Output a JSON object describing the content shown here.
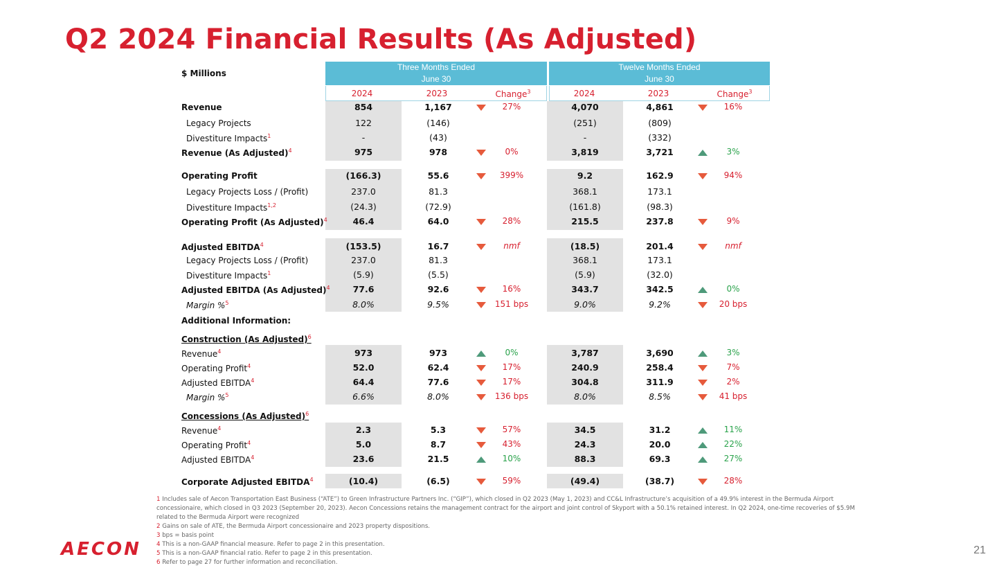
{
  "title": "Q2 2024 Financial Results (As Adjusted)",
  "units": "$ Millions",
  "header": {
    "three_months": [
      "Three Months Ended",
      "June 30"
    ],
    "twelve_months": [
      "Twelve Months Ended",
      "June 30"
    ],
    "q_2024": "2024",
    "q_2023": "2023",
    "q_change": "Change",
    "t_2024": "2024",
    "t_2023": "2023",
    "t_change": "Change",
    "change_sup": "3"
  },
  "rows": [
    {
      "label": "Revenue",
      "q24": "854",
      "q23": "1,167",
      "qdir": "down",
      "qchg": "27%",
      "qc": "red",
      "t24": "4,070",
      "t23": "4,861",
      "tdir": "down",
      "tchg": "16%",
      "tc": "red"
    },
    {
      "label": "Legacy Projects",
      "q24": "122",
      "q23": "(146)",
      "t24": "(251)",
      "t23": "(809)"
    },
    {
      "label": "Divestiture Impacts",
      "sup": "1",
      "q24": "-",
      "q23": "(43)",
      "t24": "-",
      "t23": "(332)"
    },
    {
      "label": "Revenue (As Adjusted)",
      "sup": "4",
      "q24": "975",
      "q23": "978",
      "qdir": "down",
      "qchg": "0%",
      "qc": "red",
      "t24": "3,819",
      "t23": "3,721",
      "tdir": "up",
      "tchg": "3%",
      "tc": "green"
    },
    {
      "label": "Operating Profit",
      "q24": "(166.3)",
      "q23": "55.6",
      "qdir": "down",
      "qchg": "399%",
      "qc": "red",
      "t24": "9.2",
      "t23": "162.9",
      "tdir": "down",
      "tchg": "94%",
      "tc": "red"
    },
    {
      "label": "Legacy Projects Loss / (Profit)",
      "q24": "237.0",
      "q23": "81.3",
      "t24": "368.1",
      "t23": "173.1"
    },
    {
      "label": "Divestiture Impacts",
      "sup": "1,2",
      "q24": "(24.3)",
      "q23": "(72.9)",
      "t24": "(161.8)",
      "t23": "(98.3)"
    },
    {
      "label": "Operating Profit (As Adjusted)",
      "sup": "4",
      "q24": "46.4",
      "q23": "64.0",
      "qdir": "down",
      "qchg": "28%",
      "qc": "red",
      "t24": "215.5",
      "t23": "237.8",
      "tdir": "down",
      "tchg": "9%",
      "tc": "red"
    },
    {
      "label": "Adjusted EBITDA",
      "sup": "4",
      "q24": "(153.5)",
      "q23": "16.7",
      "qdir": "down",
      "qchg": "nmf",
      "qc": "red",
      "t24": "(18.5)",
      "t23": "201.4",
      "tdir": "down",
      "tchg": "nmf",
      "tc": "red"
    },
    {
      "label": "Legacy Projects Loss / (Profit)",
      "q24": "237.0",
      "q23": "81.3",
      "t24": "368.1",
      "t23": "173.1"
    },
    {
      "label": "Divestiture Impacts",
      "sup": "1",
      "q24": "(5.9)",
      "q23": "(5.5)",
      "t24": "(5.9)",
      "t23": "(32.0)"
    },
    {
      "label": "Adjusted EBITDA (As Adjusted)",
      "sup": "4",
      "q24": "77.6",
      "q23": "92.6",
      "qdir": "down",
      "qchg": "16%",
      "qc": "red",
      "t24": "343.7",
      "t23": "342.5",
      "tdir": "up",
      "tchg": "0%",
      "tc": "green"
    },
    {
      "label": "Margin %",
      "sup": "5",
      "q24": "8.0%",
      "q23": "9.5%",
      "qdir": "down",
      "qchg": "151 bps",
      "qc": "red",
      "t24": "9.0%",
      "t23": "9.2%",
      "tdir": "down",
      "tchg": "20 bps",
      "tc": "red"
    },
    {
      "label": "Additional Information:"
    },
    {
      "label": "Construction (As Adjusted)",
      "sup": "6"
    },
    {
      "label": "Revenue",
      "sup": "4",
      "q24": "973",
      "q23": "973",
      "qdir": "up",
      "qchg": "0%",
      "qc": "green",
      "t24": "3,787",
      "t23": "3,690",
      "tdir": "up",
      "tchg": "3%",
      "tc": "green"
    },
    {
      "label": "Operating Profit",
      "sup": "4",
      "q24": "52.0",
      "q23": "62.4",
      "qdir": "down",
      "qchg": "17%",
      "qc": "red",
      "t24": "240.9",
      "t23": "258.4",
      "tdir": "down",
      "tchg": "7%",
      "tc": "red"
    },
    {
      "label": "Adjusted EBITDA",
      "sup": "4",
      "q24": "64.4",
      "q23": "77.6",
      "qdir": "down",
      "qchg": "17%",
      "qc": "red",
      "t24": "304.8",
      "t23": "311.9",
      "tdir": "down",
      "tchg": "2%",
      "tc": "red"
    },
    {
      "label": "Margin %",
      "sup": "5",
      "q24": "6.6%",
      "q23": "8.0%",
      "qdir": "down",
      "qchg": "136 bps",
      "qc": "red",
      "t24": "8.0%",
      "t23": "8.5%",
      "tdir": "down",
      "tchg": "41 bps",
      "tc": "red"
    },
    {
      "label": "Concessions (As Adjusted)",
      "sup": "6"
    },
    {
      "label": "Revenue",
      "sup": "4",
      "q24": "2.3",
      "q23": "5.3",
      "qdir": "down",
      "qchg": "57%",
      "qc": "red",
      "t24": "34.5",
      "t23": "31.2",
      "tdir": "up",
      "tchg": "11%",
      "tc": "green"
    },
    {
      "label": "Operating Profit",
      "sup": "4",
      "q24": "5.0",
      "q23": "8.7",
      "qdir": "down",
      "qchg": "43%",
      "qc": "red",
      "t24": "24.3",
      "t23": "20.0",
      "tdir": "up",
      "tchg": "22%",
      "tc": "green"
    },
    {
      "label": "Adjusted EBITDA",
      "sup": "4",
      "q24": "23.6",
      "q23": "21.5",
      "qdir": "up",
      "qchg": "10%",
      "qc": "green",
      "t24": "88.3",
      "t23": "69.3",
      "tdir": "up",
      "tchg": "27%",
      "tc": "green"
    },
    {
      "label": "Corporate Adjusted EBITDA",
      "sup": "4",
      "q24": "(10.4)",
      "q23": "(6.5)",
      "qdir": "down",
      "qchg": "59%",
      "qc": "red",
      "t24": "(49.4)",
      "t23": "(38.7)",
      "tdir": "down",
      "tchg": "28%",
      "tc": "red"
    }
  ],
  "footnotes": [
    {
      "n": "1",
      "text": "Includes sale of Aecon Transportation East Business (“ATE”) to Green Infrastructure Partners Inc. (“GIP”), which closed in Q2 2023 (May 1, 2023) and CC&L Infrastructure’s acquisition of a 49.9% interest in the Bermuda Airport concessionaire, which closed in Q3 2023 (September 20, 2023).  Aecon Concessions retains the management contract for the airport and joint control of Skyport with a 50.1% retained interest. In Q2 2024, one-time recoveries of $5.9M related to the Bermuda Airport were recognized"
    },
    {
      "n": "2",
      "text": "Gains on sale of ATE, the Bermuda Airport concessionaire and 2023 property dispositions."
    },
    {
      "n": "3",
      "text": "bps = basis point"
    },
    {
      "n": "4",
      "text": "This is a non-GAAP financial measure. Refer to page 2 in this presentation."
    },
    {
      "n": "5",
      "text": "This is a non-GAAP financial ratio. Refer to page 2 in this presentation."
    },
    {
      "n": "6",
      "text": "Refer to page 27 for further information and reconciliation."
    }
  ],
  "logo": "AECON",
  "page_number": "21",
  "colors": {
    "brand_red": "#d7202f",
    "header_blue": "#5bbcd6",
    "down_arrow": "#e65a3c",
    "up_arrow": "#4e9a7a",
    "shade": "#e2e2e2"
  }
}
